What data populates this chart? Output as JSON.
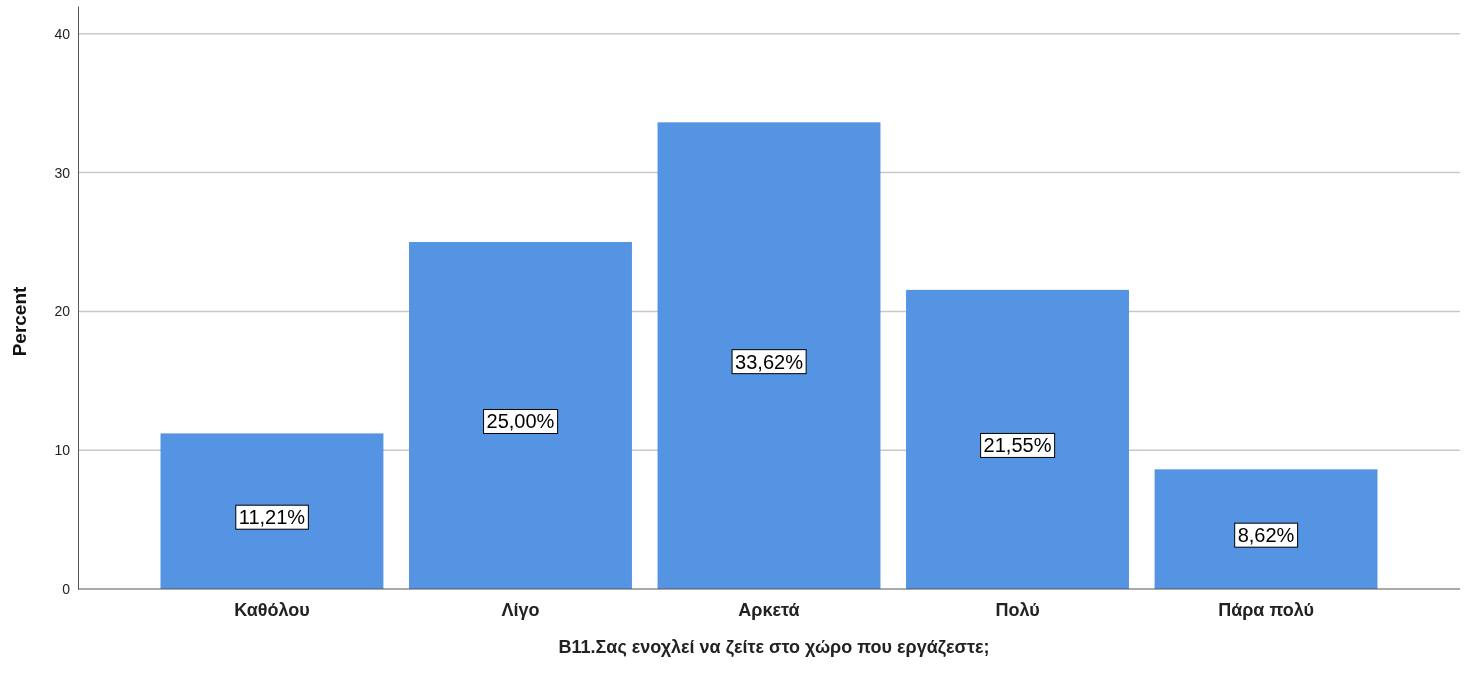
{
  "chart_data": {
    "type": "bar",
    "xlabel": "B11.Σας ενοχλεί να ζείτε στο χώρο που εργάζεστε;",
    "ylabel": "Percent",
    "categories": [
      "Καθόλου",
      "Λίγο",
      "Αρκετά",
      "Πολύ",
      "Πάρα πολύ"
    ],
    "values": [
      11.21,
      25.0,
      33.62,
      21.55,
      8.62
    ],
    "color": "#5594e3",
    "value_labels": [
      "11,21%",
      "25,00%",
      "33,62%",
      "21,55%",
      "8,62%"
    ],
    "ylim": [
      0,
      42
    ],
    "yticks": [
      0,
      10,
      20,
      30,
      40
    ],
    "grid": "y"
  }
}
